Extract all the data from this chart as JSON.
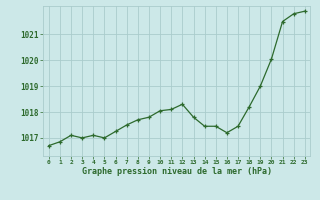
{
  "x": [
    0,
    1,
    2,
    3,
    4,
    5,
    6,
    7,
    8,
    9,
    10,
    11,
    12,
    13,
    14,
    15,
    16,
    17,
    18,
    19,
    20,
    21,
    22,
    23
  ],
  "y": [
    1016.7,
    1016.85,
    1017.1,
    1017.0,
    1017.1,
    1017.0,
    1017.25,
    1017.5,
    1017.7,
    1017.8,
    1018.05,
    1018.1,
    1018.3,
    1017.8,
    1017.45,
    1017.45,
    1017.2,
    1017.45,
    1018.2,
    1019.0,
    1020.05,
    1021.5,
    1021.8,
    1021.9
  ],
  "line_color": "#2d6a2d",
  "marker": "+",
  "bg_color": "#cce8e8",
  "grid_color": "#aacccc",
  "xlabel": "Graphe pression niveau de la mer (hPa)",
  "xlabel_color": "#2d6a2d",
  "ylabel_ticks": [
    1017,
    1018,
    1019,
    1020,
    1021
  ],
  "xlim": [
    -0.5,
    23.5
  ],
  "ylim": [
    1016.3,
    1022.1
  ],
  "tick_label_color": "#2d6a2d",
  "xticks": [
    0,
    1,
    2,
    3,
    4,
    5,
    6,
    7,
    8,
    9,
    10,
    11,
    12,
    13,
    14,
    15,
    16,
    17,
    18,
    19,
    20,
    21,
    22,
    23
  ]
}
